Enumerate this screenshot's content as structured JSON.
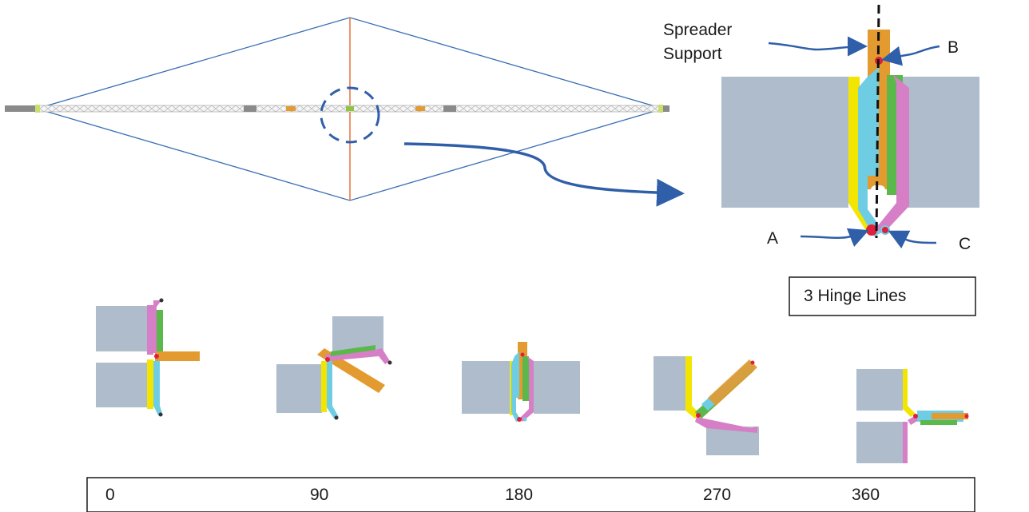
{
  "top_detail": {
    "spreader_label_line1": "Spreader",
    "spreader_label_line2": "Support",
    "label_b": "B",
    "label_a": "A",
    "label_c": "C"
  },
  "hinge_box_label": "3 Hinge Lines",
  "angles": [
    "0",
    "90",
    "180",
    "270",
    "360"
  ],
  "colors": {
    "outline": "#3a6fb5",
    "hub_line": "#e8713a",
    "block": "#aebccb",
    "yellow": "#f2e600",
    "cyan": "#6fcde3",
    "green": "#5bb84a",
    "magenta": "#d67fc6",
    "orange": "#e39a2e",
    "pin": "#e0203a"
  }
}
